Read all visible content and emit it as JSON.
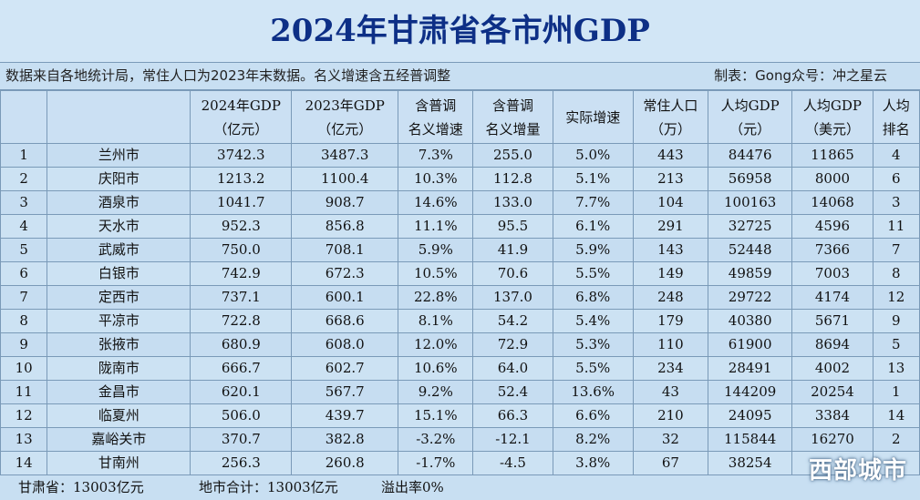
{
  "title": "2024年甘肃省各市州GDP",
  "meta": {
    "source": "数据来自各地统计局，常住人口为2023年末数据。名义增速含五经普调整",
    "credit": "制表：Gong众号：冲之星云"
  },
  "table": {
    "headers": [
      [
        "",
        ""
      ],
      [
        "",
        ""
      ],
      [
        "2024年GDP",
        "（亿元）"
      ],
      [
        "2023年GDP",
        "（亿元）"
      ],
      [
        "含普调",
        "名义增速"
      ],
      [
        "含普调",
        "名义增量"
      ],
      [
        "实际增速",
        ""
      ],
      [
        "常住人口",
        "（万）"
      ],
      [
        "人均GDP",
        "（元）"
      ],
      [
        "人均GDP",
        "（美元）"
      ],
      [
        "人均",
        "排名"
      ]
    ],
    "rows": [
      [
        "1",
        "兰州市",
        "3742.3",
        "3487.3",
        "7.3%",
        "255.0",
        "5.0%",
        "443",
        "84476",
        "11865",
        "4"
      ],
      [
        "2",
        "庆阳市",
        "1213.2",
        "1100.4",
        "10.3%",
        "112.8",
        "5.1%",
        "213",
        "56958",
        "8000",
        "6"
      ],
      [
        "3",
        "酒泉市",
        "1041.7",
        "908.7",
        "14.6%",
        "133.0",
        "7.7%",
        "104",
        "100163",
        "14068",
        "3"
      ],
      [
        "4",
        "天水市",
        "952.3",
        "856.8",
        "11.1%",
        "95.5",
        "6.1%",
        "291",
        "32725",
        "4596",
        "11"
      ],
      [
        "5",
        "武威市",
        "750.0",
        "708.1",
        "5.9%",
        "41.9",
        "5.9%",
        "143",
        "52448",
        "7366",
        "7"
      ],
      [
        "6",
        "白银市",
        "742.9",
        "672.3",
        "10.5%",
        "70.6",
        "5.5%",
        "149",
        "49859",
        "7003",
        "8"
      ],
      [
        "7",
        "定西市",
        "737.1",
        "600.1",
        "22.8%",
        "137.0",
        "6.8%",
        "248",
        "29722",
        "4174",
        "12"
      ],
      [
        "8",
        "平凉市",
        "722.8",
        "668.6",
        "8.1%",
        "54.2",
        "5.4%",
        "179",
        "40380",
        "5671",
        "9"
      ],
      [
        "9",
        "张掖市",
        "680.9",
        "608.0",
        "12.0%",
        "72.9",
        "5.3%",
        "110",
        "61900",
        "8694",
        "5"
      ],
      [
        "10",
        "陇南市",
        "666.7",
        "602.7",
        "10.6%",
        "64.0",
        "5.5%",
        "234",
        "28491",
        "4002",
        "13"
      ],
      [
        "11",
        "金昌市",
        "620.1",
        "567.7",
        "9.2%",
        "52.4",
        "13.6%",
        "43",
        "144209",
        "20254",
        "1"
      ],
      [
        "12",
        "临夏州",
        "506.0",
        "439.7",
        "15.1%",
        "66.3",
        "6.6%",
        "210",
        "24095",
        "3384",
        "14"
      ],
      [
        "13",
        "嘉峪关市",
        "370.7",
        "382.8",
        "-3.2%",
        "-12.1",
        "8.2%",
        "32",
        "115844",
        "16270",
        "2"
      ],
      [
        "14",
        "甘南州",
        "256.3",
        "260.8",
        "-1.7%",
        "-4.5",
        "3.8%",
        "67",
        "38254",
        "",
        ""
      ]
    ]
  },
  "footer": {
    "province_total": "甘肃省：13003亿元",
    "city_sum": "地市合计：13003亿元",
    "overflow": "溢出率0%"
  },
  "watermark": "西部城市"
}
